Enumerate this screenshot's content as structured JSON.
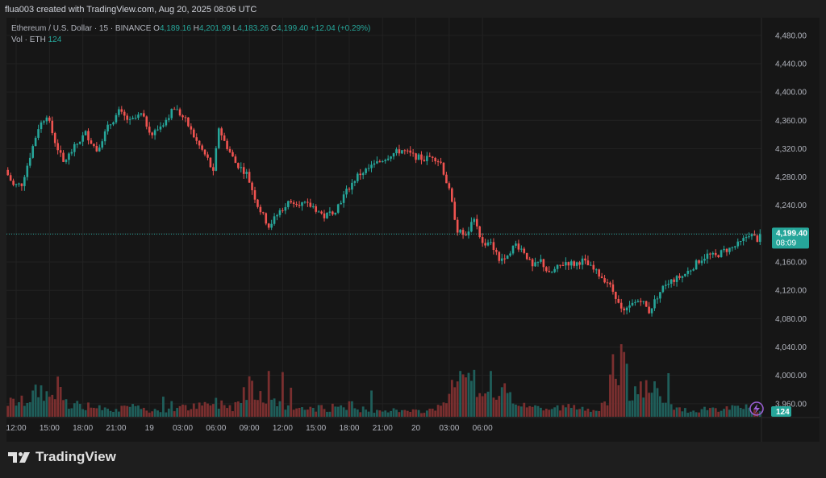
{
  "header": {
    "title": "flua003 created with TradingView.com, Aug 20, 2025 08:06 UTC"
  },
  "legend": {
    "symbol": "Ethereum / U.S. Dollar · 15 · BINANCE",
    "o_label": "O",
    "o_value": "4,189.16",
    "h_label": "H",
    "h_value": "4,201.99",
    "l_label": "L",
    "l_value": "4,183.26",
    "c_label": "C",
    "c_value": "4,199.40",
    "change": "+12.04 (+0.29%)",
    "vol_label": "Vol · ETH",
    "vol_value": "124"
  },
  "price_tag": {
    "price": "4,199.40",
    "countdown": "08:09"
  },
  "volume_tag": "124",
  "brand": {
    "name": "TradingView"
  },
  "colors": {
    "up": "#26a69a",
    "down": "#ef5350",
    "up_vol": "#1f5e5a",
    "down_vol": "#7a2f2f",
    "background": "#161616"
  },
  "chart_data": {
    "type": "candlestick",
    "y_ticks": [
      "4,480.00",
      "4,440.00",
      "4,400.00",
      "4,360.00",
      "4,320.00",
      "4,280.00",
      "4,240.00",
      "4,200.00",
      "4,160.00",
      "4,120.00",
      "4,080.00",
      "4,040.00",
      "4,000.00",
      "3,960.00"
    ],
    "y_range": [
      3945,
      4498
    ],
    "x_ticks": [
      "12:00",
      "15:00",
      "18:00",
      "21:00",
      "19",
      "03:00",
      "06:00",
      "09:00",
      "12:00",
      "15:00",
      "18:00",
      "21:00",
      "20",
      "03:00",
      "06:00"
    ],
    "last_price": 4199.4,
    "anchors": [
      [
        0,
        4290
      ],
      [
        3,
        4268
      ],
      [
        6,
        4270
      ],
      [
        9,
        4310
      ],
      [
        12,
        4350
      ],
      [
        15,
        4368
      ],
      [
        18,
        4330
      ],
      [
        21,
        4300
      ],
      [
        25,
        4322
      ],
      [
        29,
        4342
      ],
      [
        33,
        4318
      ],
      [
        37,
        4350
      ],
      [
        41,
        4372
      ],
      [
        45,
        4358
      ],
      [
        49,
        4368
      ],
      [
        53,
        4340
      ],
      [
        57,
        4356
      ],
      [
        61,
        4378
      ],
      [
        65,
        4360
      ],
      [
        69,
        4330
      ],
      [
        73,
        4305
      ],
      [
        75,
        4285
      ],
      [
        77,
        4350
      ],
      [
        79,
        4330
      ],
      [
        83,
        4300
      ],
      [
        87,
        4285
      ],
      [
        91,
        4240
      ],
      [
        95,
        4210
      ],
      [
        99,
        4232
      ],
      [
        103,
        4248
      ],
      [
        107,
        4242
      ],
      [
        111,
        4238
      ],
      [
        115,
        4224
      ],
      [
        119,
        4234
      ],
      [
        123,
        4260
      ],
      [
        127,
        4282
      ],
      [
        131,
        4292
      ],
      [
        135,
        4302
      ],
      [
        139,
        4312
      ],
      [
        143,
        4318
      ],
      [
        147,
        4310
      ],
      [
        151,
        4305
      ],
      [
        154,
        4310
      ],
      [
        157,
        4300
      ],
      [
        160,
        4260
      ],
      [
        163,
        4205
      ],
      [
        166,
        4195
      ],
      [
        169,
        4225
      ],
      [
        172,
        4185
      ],
      [
        175,
        4190
      ],
      [
        178,
        4162
      ],
      [
        181,
        4172
      ],
      [
        184,
        4185
      ],
      [
        187,
        4175
      ],
      [
        190,
        4152
      ],
      [
        193,
        4162
      ],
      [
        196,
        4142
      ],
      [
        199,
        4152
      ],
      [
        202,
        4160
      ],
      [
        205,
        4157
      ],
      [
        208,
        4162
      ],
      [
        211,
        4152
      ],
      [
        214,
        4142
      ],
      [
        217,
        4132
      ],
      [
        220,
        4112
      ],
      [
        223,
        4090
      ],
      [
        226,
        4100
      ],
      [
        229,
        4108
      ],
      [
        232,
        4090
      ],
      [
        235,
        4112
      ],
      [
        238,
        4130
      ],
      [
        241,
        4135
      ],
      [
        244,
        4140
      ],
      [
        247,
        4150
      ],
      [
        250,
        4162
      ],
      [
        253,
        4170
      ],
      [
        256,
        4168
      ],
      [
        259,
        4176
      ],
      [
        262,
        4180
      ],
      [
        265,
        4187
      ],
      [
        268,
        4200
      ],
      [
        271,
        4192
      ]
    ],
    "vol_anchors": [
      [
        0,
        28
      ],
      [
        6,
        30
      ],
      [
        9,
        42
      ],
      [
        12,
        55
      ],
      [
        15,
        40
      ],
      [
        18,
        58
      ],
      [
        21,
        30
      ],
      [
        27,
        20
      ],
      [
        33,
        25
      ],
      [
        39,
        15
      ],
      [
        45,
        18
      ],
      [
        51,
        14
      ],
      [
        57,
        15
      ],
      [
        63,
        18
      ],
      [
        69,
        20
      ],
      [
        75,
        28
      ],
      [
        81,
        20
      ],
      [
        85,
        45
      ],
      [
        87,
        72
      ],
      [
        89,
        60
      ],
      [
        93,
        40
      ],
      [
        99,
        20
      ],
      [
        105,
        15
      ],
      [
        111,
        16
      ],
      [
        117,
        18
      ],
      [
        123,
        25
      ],
      [
        129,
        12
      ],
      [
        135,
        15
      ],
      [
        141,
        12
      ],
      [
        147,
        10
      ],
      [
        153,
        14
      ],
      [
        159,
        40
      ],
      [
        162,
        75
      ],
      [
        165,
        65
      ],
      [
        168,
        55
      ],
      [
        171,
        35
      ],
      [
        177,
        45
      ],
      [
        183,
        30
      ],
      [
        189,
        20
      ],
      [
        195,
        15
      ],
      [
        201,
        20
      ],
      [
        207,
        15
      ],
      [
        213,
        20
      ],
      [
        216,
        22
      ],
      [
        218,
        95
      ],
      [
        220,
        110
      ],
      [
        222,
        70
      ],
      [
        224,
        50
      ],
      [
        226,
        45
      ],
      [
        229,
        55
      ],
      [
        232,
        60
      ],
      [
        235,
        30
      ],
      [
        241,
        15
      ],
      [
        247,
        12
      ],
      [
        253,
        18
      ],
      [
        259,
        15
      ],
      [
        265,
        20
      ],
      [
        269,
        12
      ],
      [
        271,
        10
      ]
    ],
    "vol_spikes": [
      [
        18,
        72
      ],
      [
        56,
        36
      ],
      [
        59,
        28
      ],
      [
        94,
        82
      ],
      [
        99,
        80
      ],
      [
        102,
        52
      ],
      [
        131,
        47
      ],
      [
        163,
        82
      ],
      [
        168,
        84
      ],
      [
        174,
        82
      ],
      [
        179,
        60
      ],
      [
        219,
        68
      ],
      [
        221,
        130
      ],
      [
        222,
        116
      ],
      [
        223,
        95
      ],
      [
        238,
        78
      ]
    ],
    "vol_max": 130
  }
}
